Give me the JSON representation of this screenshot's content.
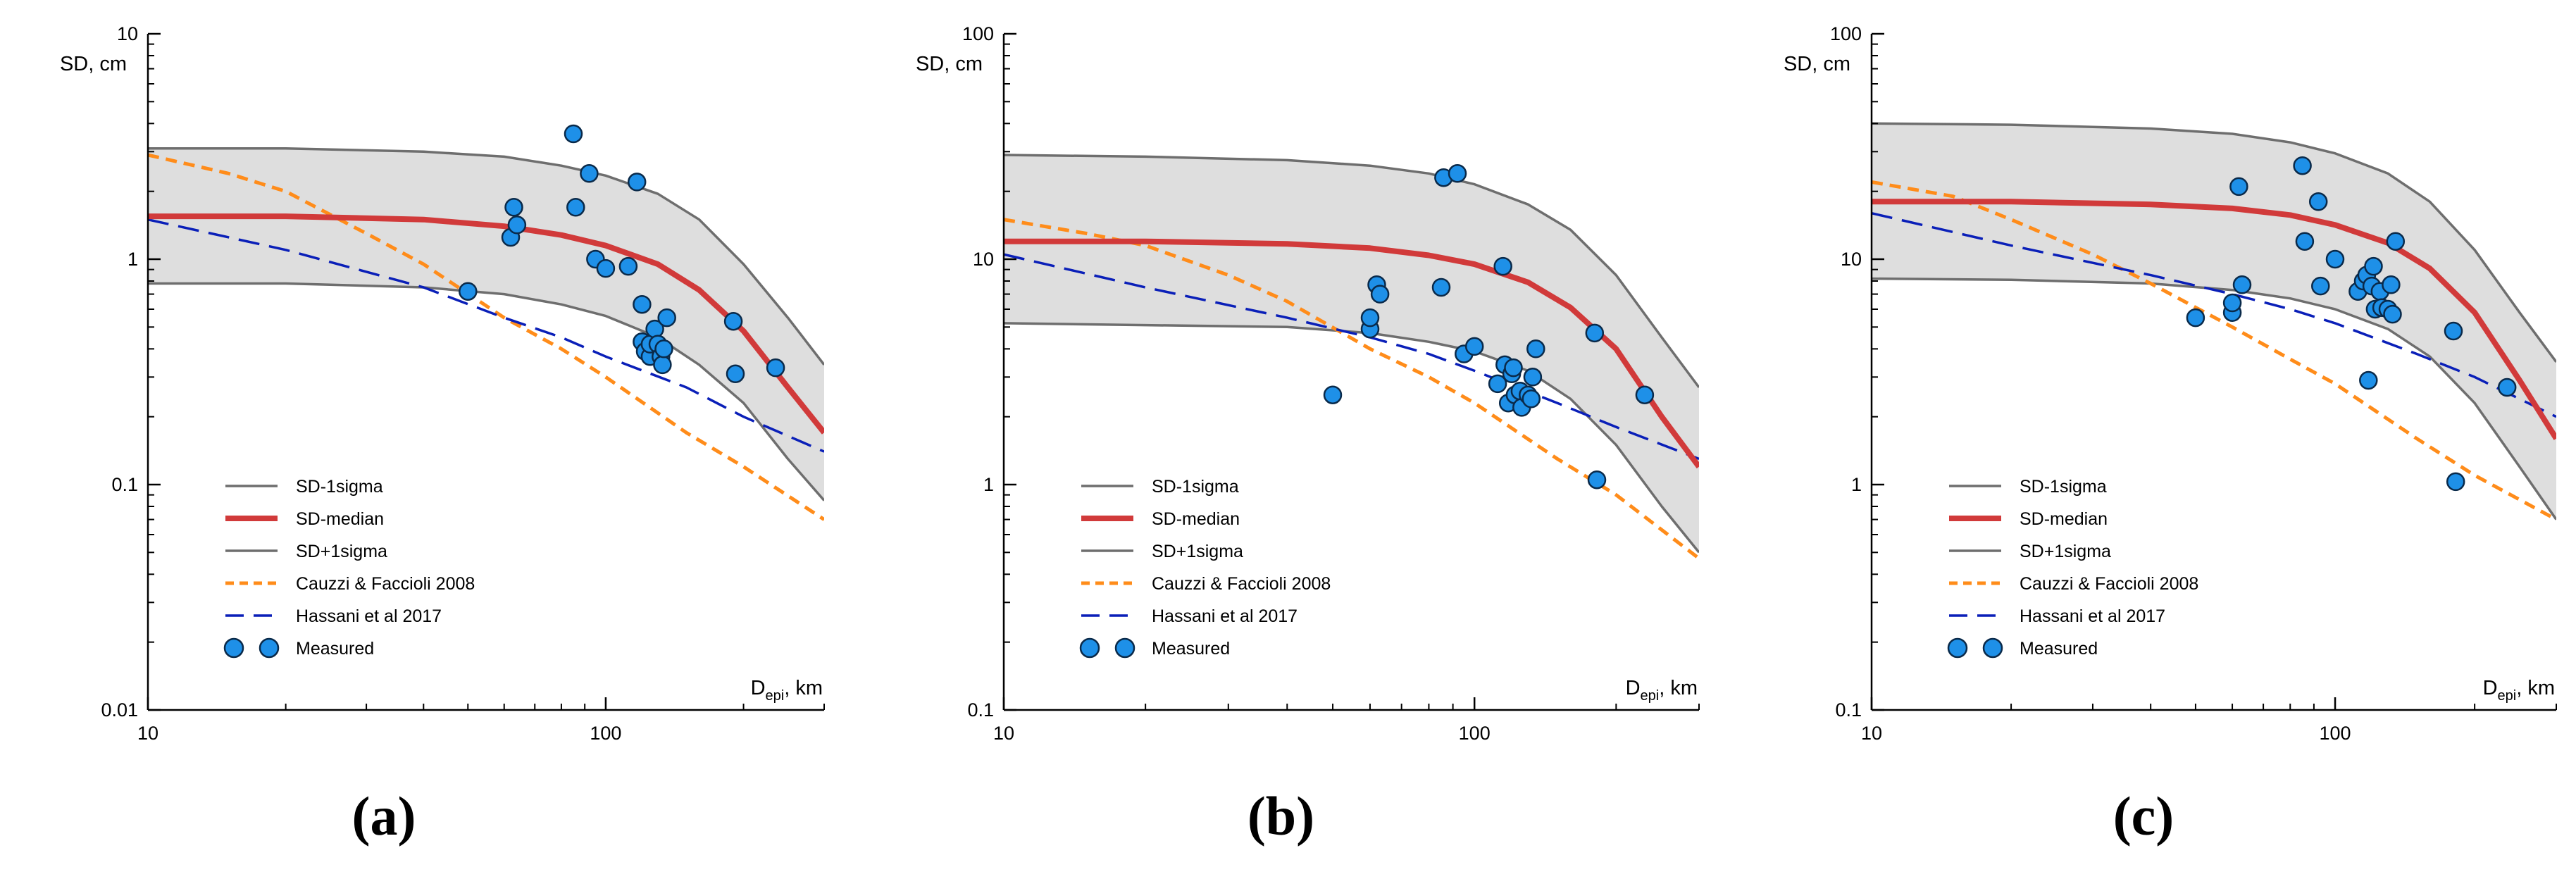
{
  "legend_entries": [
    {
      "label": "SD-1sigma",
      "style": "sigma"
    },
    {
      "label": "SD-median",
      "style": "median"
    },
    {
      "label": "SD+1sigma",
      "style": "sigma"
    },
    {
      "label": "Cauzzi & Faccioli 2008",
      "style": "cauzzi"
    },
    {
      "label": "Hassani et al 2017",
      "style": "hassani"
    },
    {
      "label": "Measured",
      "style": "measured"
    }
  ],
  "colors": {
    "band_fill": "#dedede",
    "sigma_line": "#6e6e6e",
    "median_line": "#d13a3a",
    "cauzzi_line": "#ff8c1a",
    "hassani_line": "#0a1fb8",
    "measured_fill": "#1e90e8",
    "measured_stroke": "#0a2a4a",
    "axis": "#000000"
  },
  "chart_data": [
    {
      "panel_label": "(a)",
      "type": "line",
      "scale": "log-log",
      "ylabel": "SD, cm",
      "xlabel_main": "D",
      "xlabel_sub": "epi",
      "xlabel_unit": ", km",
      "xlim": [
        10,
        300
      ],
      "ylim": [
        0.01,
        10
      ],
      "x_ticks": [
        {
          "value": 10,
          "label": "10"
        },
        {
          "value": 100,
          "label": "100"
        }
      ],
      "y_ticks": [
        {
          "value": 0.01,
          "label": "0.01"
        },
        {
          "value": 0.1,
          "label": "0.1"
        },
        {
          "value": 1,
          "label": "1"
        },
        {
          "value": 10,
          "label": "10"
        }
      ],
      "grid": false,
      "legend_position": "bottom-left",
      "series": [
        {
          "name": "SD+1sigma",
          "x": [
            10,
            20,
            40,
            60,
            80,
            100,
            130,
            160,
            200,
            250,
            300
          ],
          "y": [
            3.1,
            3.1,
            3.0,
            2.85,
            2.6,
            2.35,
            1.95,
            1.5,
            0.95,
            0.55,
            0.34
          ]
        },
        {
          "name": "SD-median",
          "x": [
            10,
            20,
            40,
            60,
            80,
            100,
            130,
            160,
            200,
            250,
            300
          ],
          "y": [
            1.55,
            1.55,
            1.5,
            1.4,
            1.28,
            1.15,
            0.95,
            0.73,
            0.48,
            0.27,
            0.17
          ]
        },
        {
          "name": "SD-1sigma",
          "x": [
            10,
            20,
            40,
            60,
            80,
            100,
            130,
            160,
            200,
            250,
            300
          ],
          "y": [
            0.78,
            0.78,
            0.75,
            0.7,
            0.63,
            0.56,
            0.45,
            0.34,
            0.23,
            0.13,
            0.085
          ]
        },
        {
          "name": "Cauzzi & Faccioli 2008",
          "x": [
            10,
            15,
            20,
            30,
            40,
            60,
            80,
            100,
            150,
            200,
            300
          ],
          "y": [
            2.9,
            2.4,
            2.0,
            1.3,
            0.95,
            0.55,
            0.4,
            0.3,
            0.17,
            0.12,
            0.07
          ]
        },
        {
          "name": "Hassani et al 2017",
          "x": [
            10,
            20,
            40,
            60,
            80,
            100,
            150,
            200,
            300
          ],
          "y": [
            1.5,
            1.1,
            0.75,
            0.55,
            0.45,
            0.37,
            0.27,
            0.2,
            0.14
          ]
        },
        {
          "name": "Measured",
          "x": [
            50,
            62,
            63,
            64,
            85,
            86,
            92,
            95,
            100,
            112,
            117,
            120,
            120,
            122,
            125,
            125,
            128,
            130,
            132,
            133,
            134,
            136,
            190,
            192,
            235
          ],
          "y": [
            0.72,
            1.25,
            1.7,
            1.42,
            3.6,
            1.7,
            2.4,
            1.0,
            0.91,
            0.93,
            2.2,
            0.63,
            0.43,
            0.39,
            0.37,
            0.42,
            0.49,
            0.42,
            0.37,
            0.34,
            0.4,
            0.55,
            0.53,
            0.31,
            0.33
          ]
        }
      ]
    },
    {
      "panel_label": "(b)",
      "type": "line",
      "scale": "log-log",
      "ylabel": "SD, cm",
      "xlabel_main": "D",
      "xlabel_sub": "epi",
      "xlabel_unit": ", km",
      "xlim": [
        10,
        300
      ],
      "ylim": [
        0.1,
        100
      ],
      "x_ticks": [
        {
          "value": 10,
          "label": "10"
        },
        {
          "value": 100,
          "label": "100"
        }
      ],
      "y_ticks": [
        {
          "value": 0.1,
          "label": "0.1"
        },
        {
          "value": 1,
          "label": "1"
        },
        {
          "value": 10,
          "label": "10"
        },
        {
          "value": 100,
          "label": "100"
        }
      ],
      "grid": false,
      "legend_position": "bottom-left",
      "series": [
        {
          "name": "SD+1sigma",
          "x": [
            10,
            20,
            40,
            60,
            80,
            100,
            130,
            160,
            200,
            250,
            300
          ],
          "y": [
            29,
            28.5,
            27.5,
            26,
            24,
            21.5,
            17.5,
            13.5,
            8.5,
            4.5,
            2.7
          ]
        },
        {
          "name": "SD-median",
          "x": [
            10,
            20,
            40,
            60,
            80,
            100,
            130,
            160,
            200,
            250,
            300
          ],
          "y": [
            12,
            12,
            11.7,
            11.2,
            10.4,
            9.5,
            7.9,
            6.1,
            4.0,
            2.0,
            1.2
          ]
        },
        {
          "name": "SD-1sigma",
          "x": [
            10,
            20,
            40,
            60,
            80,
            100,
            130,
            160,
            200,
            250,
            300
          ],
          "y": [
            5.2,
            5.1,
            5.0,
            4.7,
            4.3,
            3.9,
            3.2,
            2.4,
            1.5,
            0.8,
            0.5
          ]
        },
        {
          "name": "Cauzzi & Faccioli 2008",
          "x": [
            10,
            15,
            20,
            30,
            40,
            60,
            80,
            100,
            150,
            200,
            300
          ],
          "y": [
            15,
            13,
            11.5,
            8.5,
            6.5,
            4.0,
            3.0,
            2.3,
            1.3,
            0.9,
            0.47
          ]
        },
        {
          "name": "Hassani et al 2017",
          "x": [
            10,
            20,
            40,
            60,
            80,
            100,
            150,
            200,
            300
          ],
          "y": [
            10.5,
            7.5,
            5.5,
            4.5,
            3.8,
            3.2,
            2.3,
            1.8,
            1.3
          ]
        },
        {
          "name": "Measured",
          "x": [
            50,
            60,
            60,
            62,
            63,
            85,
            86,
            92,
            95,
            100,
            112,
            115,
            116,
            118,
            120,
            121,
            122,
            125,
            126,
            130,
            132,
            133,
            135,
            180,
            182,
            230
          ],
          "y": [
            2.5,
            4.9,
            5.5,
            7.7,
            7.0,
            7.5,
            23,
            24,
            3.8,
            4.1,
            2.8,
            9.3,
            3.4,
            2.3,
            3.1,
            3.3,
            2.5,
            2.6,
            2.2,
            2.5,
            2.4,
            3.0,
            4.0,
            4.7,
            1.05,
            2.5
          ]
        }
      ]
    },
    {
      "panel_label": "(c)",
      "type": "line",
      "scale": "log-log",
      "ylabel": "SD, cm",
      "xlabel_main": "D",
      "xlabel_sub": "epi",
      "xlabel_unit": ", km",
      "xlim": [
        10,
        300
      ],
      "ylim": [
        0.1,
        100
      ],
      "x_ticks": [
        {
          "value": 10,
          "label": "10"
        },
        {
          "value": 100,
          "label": "100"
        }
      ],
      "y_ticks": [
        {
          "value": 0.1,
          "label": "0.1"
        },
        {
          "value": 1,
          "label": "1"
        },
        {
          "value": 10,
          "label": "10"
        },
        {
          "value": 100,
          "label": "100"
        }
      ],
      "grid": false,
      "legend_position": "bottom-left",
      "series": [
        {
          "name": "SD+1sigma",
          "x": [
            10,
            20,
            40,
            60,
            80,
            100,
            130,
            160,
            200,
            250,
            300
          ],
          "y": [
            40,
            39.5,
            38,
            36,
            33,
            29.5,
            24,
            18,
            11,
            5.8,
            3.5
          ]
        },
        {
          "name": "SD-median",
          "x": [
            10,
            20,
            40,
            60,
            80,
            100,
            130,
            160,
            200,
            250,
            300
          ],
          "y": [
            18,
            18,
            17.5,
            16.8,
            15.7,
            14.2,
            11.8,
            9.1,
            5.8,
            2.9,
            1.6
          ]
        },
        {
          "name": "SD-1sigma",
          "x": [
            10,
            20,
            40,
            60,
            80,
            100,
            130,
            160,
            200,
            250,
            300
          ],
          "y": [
            8.2,
            8.1,
            7.8,
            7.3,
            6.7,
            6.0,
            4.9,
            3.7,
            2.3,
            1.2,
            0.7
          ]
        },
        {
          "name": "Cauzzi & Faccioli 2008",
          "x": [
            10,
            15,
            20,
            30,
            40,
            60,
            80,
            100,
            150,
            200,
            300
          ],
          "y": [
            22,
            19,
            15,
            10.5,
            7.8,
            5.0,
            3.6,
            2.8,
            1.6,
            1.1,
            0.7
          ]
        },
        {
          "name": "Hassani et al 2017",
          "x": [
            10,
            20,
            40,
            60,
            80,
            100,
            150,
            200,
            300
          ],
          "y": [
            16,
            11.5,
            8.5,
            7.0,
            6.0,
            5.2,
            3.8,
            3.0,
            2.0
          ]
        },
        {
          "name": "Measured",
          "x": [
            50,
            60,
            60,
            62,
            63,
            85,
            86,
            92,
            93,
            100,
            112,
            115,
            117,
            118,
            120,
            121,
            122,
            125,
            126,
            130,
            132,
            133,
            135,
            180,
            182,
            235
          ],
          "y": [
            5.5,
            5.8,
            6.4,
            21,
            7.7,
            26,
            12,
            18,
            7.6,
            10,
            7.2,
            8.0,
            8.5,
            2.9,
            7.6,
            9.3,
            6.0,
            7.2,
            6.1,
            6.0,
            7.7,
            5.7,
            12,
            4.8,
            1.03,
            2.7
          ]
        }
      ]
    }
  ]
}
